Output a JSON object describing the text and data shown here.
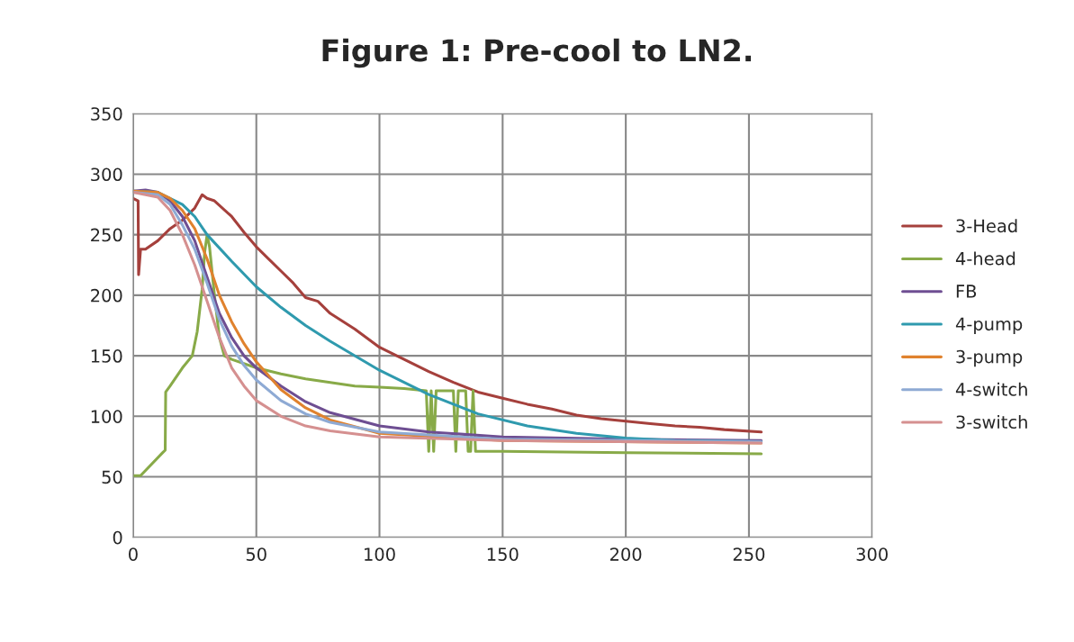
{
  "chart_data": {
    "type": "line",
    "title": "Figure 1: Pre-cool to LN2.",
    "xlim": [
      0,
      300
    ],
    "xticks": [
      0,
      50,
      100,
      150,
      200,
      250,
      300
    ],
    "ylim": [
      0,
      350
    ],
    "yticks": [
      0,
      50,
      100,
      150,
      200,
      250,
      300,
      350
    ],
    "grid": true,
    "legend": "right",
    "line_style": "solid",
    "marker": "none",
    "series": [
      {
        "name": "3-Head",
        "color": "#a5403c",
        "x": [
          0,
          2,
          2.2,
          3,
          5,
          10,
          15,
          20,
          25,
          28,
          30,
          33,
          40,
          45,
          50,
          55,
          60,
          65,
          70,
          75,
          80,
          90,
          100,
          110,
          120,
          130,
          140,
          150,
          160,
          170,
          180,
          190,
          200,
          210,
          220,
          230,
          240,
          255
        ],
        "values": [
          280,
          278,
          217,
          238,
          238,
          245,
          255,
          262,
          272,
          283,
          280,
          278,
          265,
          252,
          240,
          230,
          220,
          210,
          198,
          195,
          185,
          172,
          157,
          147,
          137,
          128,
          120,
          115,
          110,
          106,
          101,
          98,
          96,
          94,
          92,
          91,
          89,
          87
        ]
      },
      {
        "name": "4-head",
        "color": "#88aa48",
        "x": [
          0,
          3,
          12,
          13,
          13.2,
          15,
          20,
          24,
          26,
          28,
          29,
          30,
          31,
          33,
          35,
          37,
          40,
          50,
          60,
          70,
          80,
          90,
          100,
          110,
          119,
          120,
          121,
          122,
          123,
          130,
          131,
          132,
          135,
          136,
          137,
          138,
          139,
          150,
          200,
          255
        ],
        "values": [
          51,
          51,
          70,
          72,
          120,
          125,
          140,
          150,
          170,
          205,
          235,
          250,
          240,
          200,
          165,
          150,
          147,
          140,
          135,
          131,
          128,
          125,
          124,
          123,
          121,
          71,
          121,
          71,
          121,
          121,
          71,
          121,
          121,
          71,
          71,
          121,
          71,
          71,
          70,
          69
        ]
      },
      {
        "name": "FB",
        "color": "#6e4e92",
        "x": [
          0,
          5,
          10,
          15,
          20,
          25,
          30,
          35,
          40,
          45,
          50,
          60,
          70,
          80,
          100,
          120,
          150,
          200,
          255
        ],
        "values": [
          286,
          287,
          285,
          278,
          265,
          245,
          215,
          185,
          165,
          150,
          140,
          125,
          112,
          103,
          92,
          87,
          83,
          81,
          80
        ]
      },
      {
        "name": "4-pump",
        "color": "#2f9aae",
        "x": [
          0,
          10,
          20,
          25,
          30,
          40,
          50,
          60,
          70,
          80,
          100,
          120,
          140,
          160,
          180,
          200,
          220,
          255
        ],
        "values": [
          286,
          285,
          275,
          265,
          250,
          228,
          207,
          190,
          175,
          162,
          138,
          118,
          102,
          92,
          86,
          82,
          80,
          79
        ]
      },
      {
        "name": "3-pump",
        "color": "#e0822e",
        "x": [
          0,
          10,
          15,
          20,
          25,
          30,
          35,
          40,
          45,
          50,
          60,
          70,
          80,
          100,
          150,
          255
        ],
        "values": [
          286,
          285,
          280,
          270,
          255,
          230,
          200,
          178,
          160,
          145,
          122,
          107,
          97,
          86,
          80,
          78
        ]
      },
      {
        "name": "4-switch",
        "color": "#8eaad4",
        "x": [
          0,
          10,
          15,
          20,
          25,
          30,
          35,
          40,
          45,
          50,
          60,
          70,
          80,
          100,
          150,
          255
        ],
        "values": [
          285,
          283,
          275,
          258,
          238,
          210,
          180,
          158,
          142,
          130,
          113,
          102,
          95,
          87,
          81,
          79
        ]
      },
      {
        "name": "3-switch",
        "color": "#d59090",
        "x": [
          0,
          10,
          15,
          20,
          25,
          30,
          35,
          40,
          45,
          50,
          60,
          70,
          80,
          100,
          150,
          255
        ],
        "values": [
          285,
          281,
          270,
          250,
          225,
          195,
          165,
          140,
          125,
          113,
          100,
          92,
          88,
          83,
          80,
          78
        ]
      }
    ]
  }
}
